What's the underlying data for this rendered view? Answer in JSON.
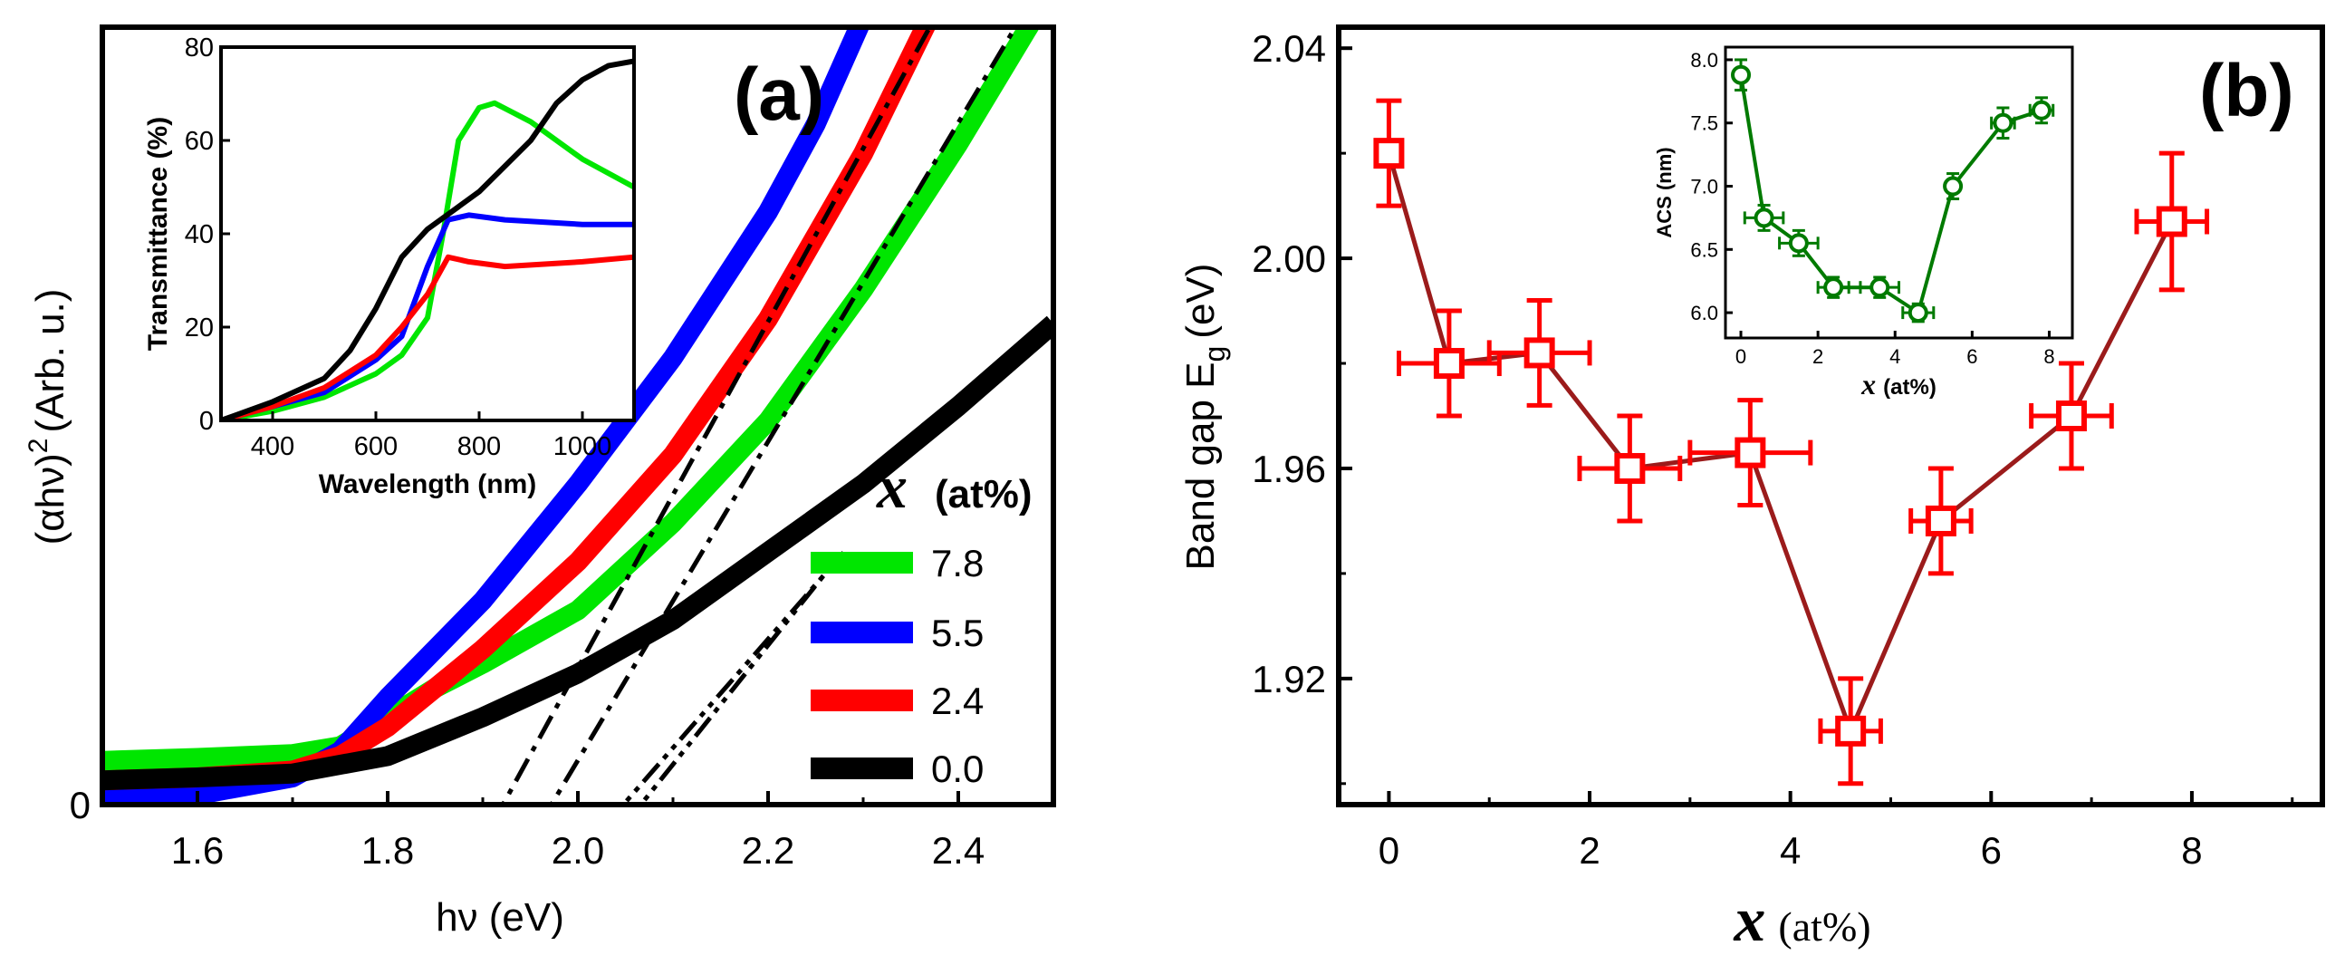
{
  "chart_data": [
    {
      "panel": "(a)",
      "type": "line",
      "xlabel": "hν (eV)",
      "ylabel_main": "(αhν)",
      "ylabel_sup": "2",
      "ylabel_unit": "(Arb. u.)",
      "xlim": [
        1.5,
        2.5
      ],
      "ylim": [
        0,
        80
      ],
      "xticks": [
        "1.6",
        "1.8",
        "2.0",
        "2.2",
        "2.4"
      ],
      "yticks": [
        "0"
      ],
      "legend_title_var": "x",
      "legend_title_unit": "(at%)",
      "legend_position": "right",
      "series": [
        {
          "name": "7.8",
          "color": "#00e600",
          "x": [
            1.5,
            1.6,
            1.7,
            1.75,
            1.8,
            1.85,
            1.9,
            2.0,
            2.1,
            2.2,
            2.3,
            2.4,
            2.48
          ],
          "y": [
            4.5,
            4.8,
            5.2,
            6.0,
            9.0,
            12.0,
            14.5,
            20.0,
            29.0,
            39.5,
            53.0,
            68.0,
            81.0
          ]
        },
        {
          "name": "5.5",
          "color": "#0000ff",
          "x": [
            1.5,
            1.6,
            1.7,
            1.75,
            1.8,
            1.85,
            1.9,
            2.0,
            2.1,
            2.2,
            2.25,
            2.3
          ],
          "y": [
            0.5,
            1.0,
            2.8,
            5.5,
            11.0,
            16.0,
            21.0,
            33.0,
            46.0,
            61.0,
            70.0,
            81.0
          ]
        },
        {
          "name": "2.4",
          "color": "#ff0000",
          "x": [
            1.5,
            1.6,
            1.7,
            1.75,
            1.8,
            1.85,
            1.9,
            2.0,
            2.1,
            2.2,
            2.3,
            2.37
          ],
          "y": [
            2.5,
            2.8,
            3.5,
            5.0,
            8.0,
            12.0,
            16.0,
            25.0,
            36.0,
            50.0,
            67.0,
            81.0
          ]
        },
        {
          "name": "0.0",
          "color": "#000000",
          "x": [
            1.5,
            1.6,
            1.7,
            1.8,
            1.9,
            2.0,
            2.1,
            2.2,
            2.3,
            2.4,
            2.5
          ],
          "y": [
            2.5,
            2.8,
            3.2,
            5.0,
            9.0,
            13.5,
            19.0,
            26.0,
            33.0,
            41.0,
            49.5
          ]
        }
      ],
      "tangent_lines": [
        {
          "x": [
            1.91,
            2.37
          ],
          "y": [
            -2,
            80
          ]
        },
        {
          "x": [
            1.96,
            2.46
          ],
          "y": [
            -2,
            80
          ]
        },
        {
          "x": [
            2.03,
            2.28
          ],
          "y": [
            -2,
            26
          ]
        },
        {
          "x": [
            2.05,
            2.27
          ],
          "y": [
            -2,
            25
          ]
        }
      ],
      "inset": {
        "xlabel": "Wavelength (nm)",
        "ylabel": "Transmittance (%)",
        "xlim": [
          300,
          1100
        ],
        "ylim": [
          0,
          80
        ],
        "xticks": [
          "400",
          "600",
          "800",
          "1000"
        ],
        "yticks": [
          "0",
          "20",
          "40",
          "60",
          "80"
        ],
        "series": [
          {
            "name": "7.8",
            "color": "#00e600",
            "x": [
              300,
              400,
              500,
              600,
              650,
              700,
              730,
              760,
              800,
              830,
              900,
              1000,
              1100
            ],
            "y": [
              0,
              2,
              5,
              10,
              14,
              22,
              40,
              60,
              67,
              68,
              64,
              56,
              50
            ]
          },
          {
            "name": "5.5",
            "color": "#0000ff",
            "x": [
              300,
              400,
              500,
              600,
              650,
              700,
              740,
              780,
              850,
              1000,
              1100
            ],
            "y": [
              0,
              3,
              6,
              13,
              18,
              33,
              43,
              44,
              43,
              42,
              42
            ]
          },
          {
            "name": "2.4",
            "color": "#ff0000",
            "x": [
              300,
              400,
              500,
              600,
              650,
              700,
              740,
              780,
              850,
              1000,
              1100
            ],
            "y": [
              0,
              3,
              7,
              14,
              20,
              27,
              35,
              34,
              33,
              34,
              35
            ]
          },
          {
            "name": "0.0",
            "color": "#000000",
            "x": [
              300,
              400,
              500,
              550,
              600,
              650,
              700,
              750,
              800,
              900,
              950,
              1000,
              1050,
              1100
            ],
            "y": [
              0,
              4,
              9,
              15,
              24,
              35,
              41,
              45,
              49,
              60,
              68,
              73,
              76,
              77
            ]
          }
        ]
      }
    },
    {
      "panel": "(b)",
      "type": "line",
      "xlabel_var": "x",
      "xlabel_unit": "(at%)",
      "ylabel_main": "Band gap E",
      "ylabel_sub": "g",
      "ylabel_unit": "(eV)",
      "xlim": [
        -0.5,
        9.3
      ],
      "ylim": [
        1.896,
        2.044
      ],
      "xticks": [
        "0",
        "2",
        "4",
        "6",
        "8"
      ],
      "yticks": [
        "1.92",
        "1.96",
        "2.00",
        "2.04"
      ],
      "color": "#ff0000",
      "line_color": "#9b1b1b",
      "x": [
        0,
        0.6,
        1.5,
        2.4,
        3.6,
        4.6,
        5.5,
        6.8,
        7.8
      ],
      "y": [
        2.02,
        1.98,
        1.982,
        1.96,
        1.963,
        1.91,
        1.95,
        1.97,
        2.007
      ],
      "x_err": [
        0,
        0.5,
        0.5,
        0.5,
        0.6,
        0.3,
        0.3,
        0.4,
        0.35
      ],
      "y_err": [
        0.01,
        0.01,
        0.01,
        0.01,
        0.01,
        0.01,
        0.01,
        0.01,
        0.013
      ],
      "inset": {
        "xlabel_var": "x",
        "xlabel_unit": "(at%)",
        "ylabel": "ACS (nm)",
        "xlim": [
          -0.4,
          8.6
        ],
        "ylim": [
          5.8,
          8.1
        ],
        "xticks": [
          "0",
          "2",
          "4",
          "6",
          "8"
        ],
        "yticks": [
          "6.0",
          "6.5",
          "7.0",
          "7.5",
          "8.0"
        ],
        "color": "#007a00",
        "x": [
          0,
          0.6,
          1.5,
          2.4,
          3.6,
          4.6,
          5.5,
          6.8,
          7.8
        ],
        "y": [
          7.88,
          6.75,
          6.55,
          6.2,
          6.2,
          6.0,
          7.0,
          7.5,
          7.6
        ],
        "x_err": [
          0,
          0.5,
          0.5,
          0.4,
          0.5,
          0.4,
          0,
          0.3,
          0.3
        ],
        "y_err": [
          0.12,
          0.1,
          0.1,
          0.08,
          0.08,
          0.07,
          0.1,
          0.12,
          0.1
        ]
      }
    }
  ]
}
